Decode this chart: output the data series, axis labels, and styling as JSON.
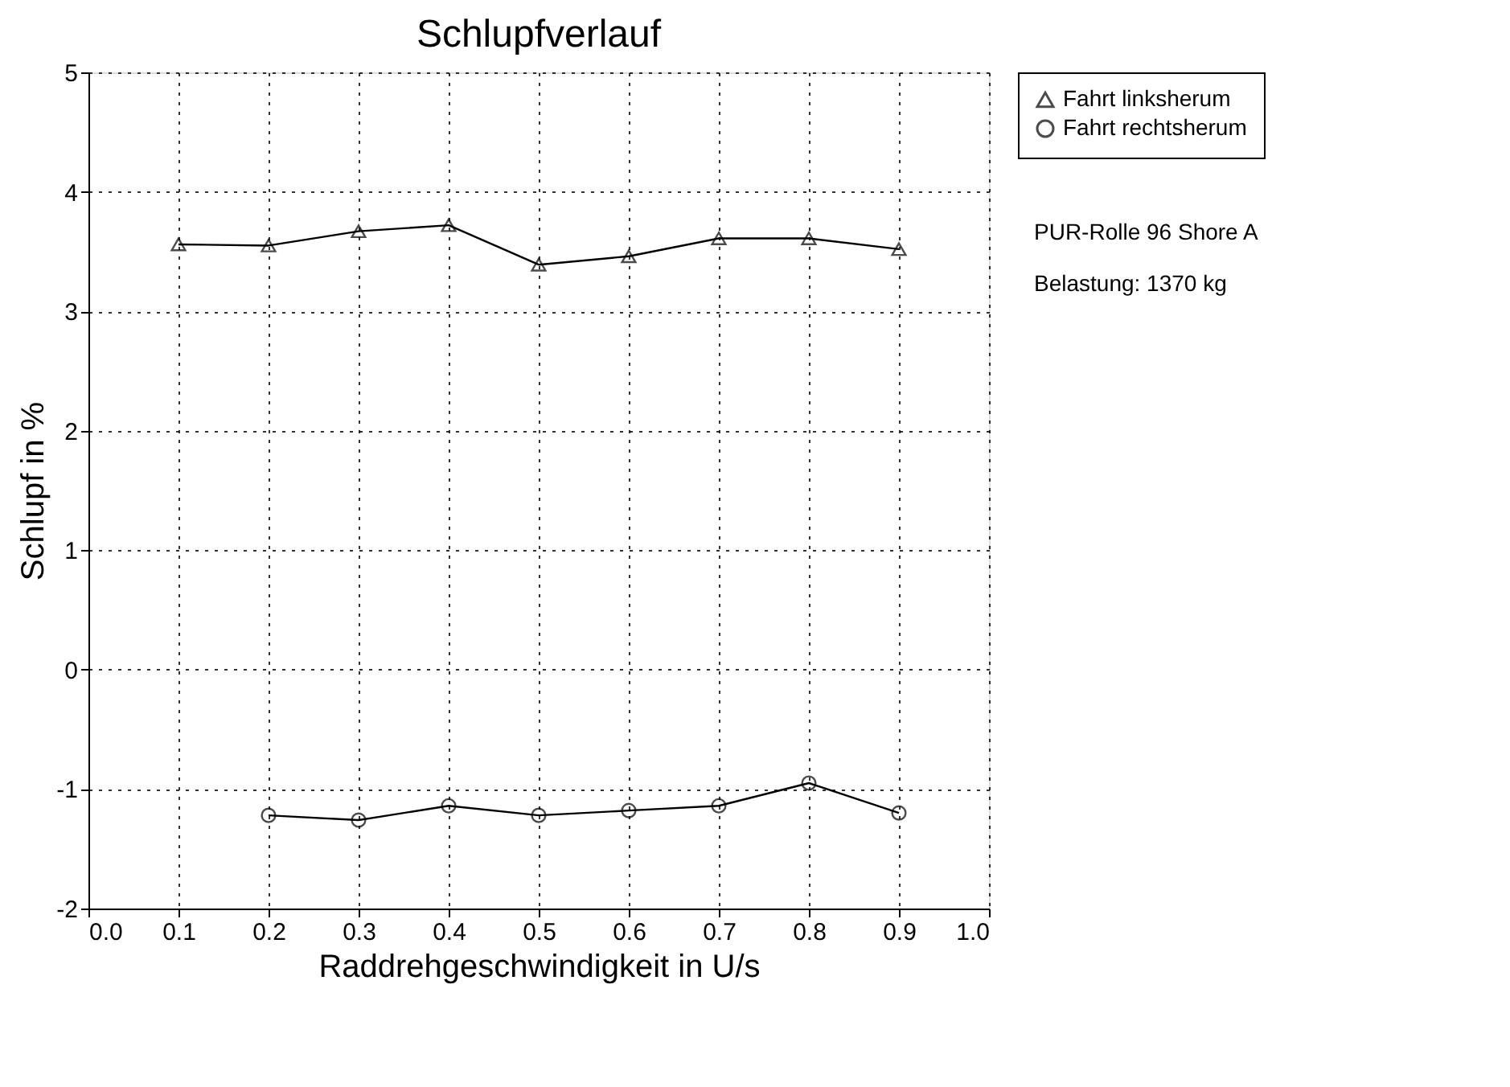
{
  "chart_data": {
    "type": "line",
    "title": "Schlupfverlauf",
    "xlabel": "Raddrehgeschwindigkeit in U/s",
    "ylabel": "Schlupf in %",
    "x": [
      0.1,
      0.2,
      0.3,
      0.4,
      0.5,
      0.6,
      0.7,
      0.8,
      0.9
    ],
    "series": [
      {
        "name": "Fahrt linksherum",
        "color": "#000000",
        "marker": "triangle",
        "values": [
          3.56,
          3.55,
          3.67,
          3.72,
          3.39,
          3.46,
          3.61,
          3.61,
          3.52
        ]
      },
      {
        "name": "Fahrt rechtsherum",
        "color": "#000000",
        "marker": "circle",
        "values": [
          null,
          -1.22,
          -1.26,
          -1.14,
          -1.22,
          -1.18,
          -1.14,
          -0.95,
          -1.2
        ]
      }
    ],
    "xlim": [
      0,
      1
    ],
    "xticks": [
      {
        "value": 0,
        "label": "0.0"
      },
      {
        "value": 0.1,
        "label": "0.1"
      },
      {
        "value": 0.2,
        "label": "0.2"
      },
      {
        "value": 0.3,
        "label": "0.3"
      },
      {
        "value": 0.4,
        "label": "0.4"
      },
      {
        "value": 0.5,
        "label": "0.5"
      },
      {
        "value": 0.6,
        "label": "0.6"
      },
      {
        "value": 0.7,
        "label": "0.7"
      },
      {
        "value": 0.8,
        "label": "0.8"
      },
      {
        "value": 0.9,
        "label": "0.9"
      },
      {
        "value": 1,
        "label": "1.0"
      }
    ],
    "ylim": [
      -2,
      5
    ],
    "yticks": [
      -2,
      -1,
      0,
      1,
      2,
      3,
      4,
      5
    ],
    "grid": true,
    "legend": "right",
    "line_style": "solid",
    "annotations": [
      "PUR-Rolle 96 Shore A",
      "Belastung: 1370 kg"
    ]
  }
}
